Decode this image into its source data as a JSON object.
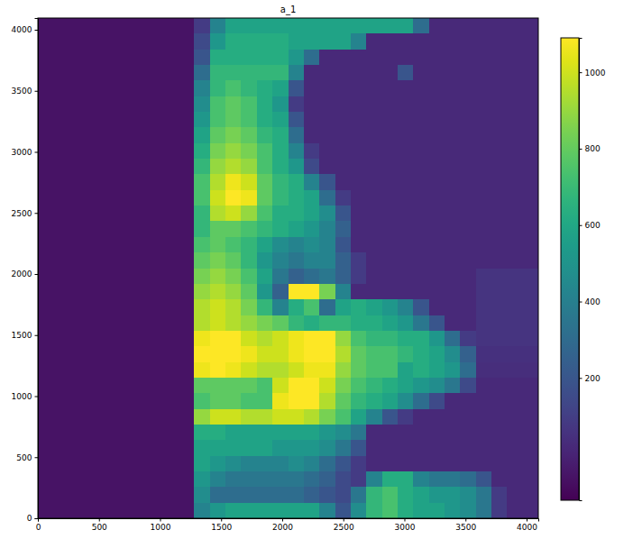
{
  "chart_data": {
    "type": "heatmap",
    "title": "a_1",
    "color": "viridis",
    "xlim": [
      0,
      4096
    ],
    "ylim": [
      0,
      4096
    ],
    "xticks": [
      0,
      500,
      1000,
      1500,
      2000,
      2500,
      3000,
      3500,
      4000
    ],
    "yticks": [
      0,
      500,
      1000,
      1500,
      2000,
      2500,
      3000,
      3500,
      4000
    ],
    "x_edges": [
      0,
      128,
      256,
      384,
      512,
      640,
      768,
      896,
      1024,
      1152,
      1280,
      1408,
      1536,
      1664,
      1792,
      1920,
      2048,
      2176,
      2304,
      2432,
      2560,
      2688,
      2816,
      2944,
      3072,
      3200,
      3328,
      3456,
      3584,
      3712,
      3840,
      3968,
      4096
    ],
    "y_edges": [
      4096,
      3968,
      3840,
      3712,
      3584,
      3456,
      3328,
      3200,
      3072,
      2944,
      2816,
      2688,
      2560,
      2432,
      2304,
      2176,
      2048,
      1920,
      1792,
      1664,
      1536,
      1408,
      1280,
      1152,
      1024,
      896,
      768,
      640,
      512,
      384,
      256,
      128,
      0
    ],
    "z": [
      [
        -60,
        -60,
        -60,
        -60,
        -60,
        -60,
        -60,
        -60,
        -60,
        -60,
        90,
        420,
        580,
        580,
        580,
        580,
        580,
        580,
        580,
        580,
        580,
        580,
        580,
        580,
        310,
        20,
        20,
        20,
        20,
        20,
        20,
        20
      ],
      [
        -60,
        -60,
        -60,
        -60,
        -60,
        -60,
        -60,
        -60,
        -60,
        -60,
        150,
        520,
        630,
        630,
        630,
        630,
        580,
        580,
        580,
        580,
        420,
        20,
        20,
        20,
        20,
        20,
        20,
        20,
        20,
        20,
        20,
        20
      ],
      [
        -60,
        -60,
        -60,
        -60,
        -60,
        -60,
        -60,
        -60,
        -60,
        -60,
        200,
        630,
        630,
        630,
        630,
        630,
        520,
        310,
        20,
        20,
        20,
        20,
        20,
        20,
        20,
        20,
        20,
        20,
        20,
        20,
        20,
        20
      ],
      [
        -60,
        -60,
        -60,
        -60,
        -60,
        -60,
        -60,
        -60,
        -60,
        -60,
        310,
        680,
        680,
        680,
        680,
        680,
        420,
        20,
        20,
        20,
        20,
        20,
        20,
        200,
        20,
        20,
        20,
        20,
        20,
        20,
        20,
        20
      ],
      [
        -60,
        -60,
        -60,
        -60,
        -60,
        -60,
        -60,
        -60,
        -60,
        -60,
        420,
        680,
        740,
        680,
        630,
        580,
        200,
        20,
        20,
        20,
        20,
        20,
        20,
        20,
        20,
        20,
        20,
        20,
        20,
        20,
        20,
        20
      ],
      [
        -60,
        -60,
        -60,
        -60,
        -60,
        -60,
        -60,
        -60,
        -60,
        -60,
        470,
        740,
        790,
        740,
        630,
        520,
        90,
        20,
        20,
        20,
        20,
        20,
        20,
        20,
        20,
        20,
        20,
        20,
        20,
        20,
        20,
        20
      ],
      [
        -60,
        -60,
        -60,
        -60,
        -60,
        -60,
        -60,
        -60,
        -60,
        -60,
        520,
        740,
        790,
        740,
        630,
        580,
        200,
        20,
        20,
        20,
        20,
        20,
        20,
        20,
        20,
        20,
        20,
        20,
        20,
        20,
        20,
        20
      ],
      [
        -60,
        -60,
        -60,
        -60,
        -60,
        -60,
        -60,
        -60,
        -60,
        -60,
        580,
        790,
        840,
        790,
        680,
        630,
        310,
        20,
        20,
        20,
        20,
        20,
        20,
        20,
        20,
        20,
        20,
        20,
        20,
        20,
        20,
        20
      ],
      [
        -60,
        -60,
        -60,
        -60,
        -60,
        -60,
        -60,
        -60,
        -60,
        -60,
        630,
        840,
        900,
        840,
        740,
        630,
        420,
        90,
        20,
        20,
        20,
        20,
        20,
        20,
        20,
        20,
        20,
        20,
        20,
        20,
        20,
        20
      ],
      [
        -60,
        -60,
        -60,
        -60,
        -60,
        -60,
        -60,
        -60,
        -60,
        -60,
        680,
        900,
        950,
        900,
        740,
        630,
        520,
        150,
        20,
        20,
        20,
        20,
        20,
        20,
        20,
        20,
        20,
        20,
        20,
        20,
        20,
        20
      ],
      [
        -60,
        -60,
        -60,
        -60,
        -60,
        -60,
        -60,
        -60,
        -60,
        -60,
        740,
        950,
        1060,
        1000,
        790,
        680,
        630,
        420,
        200,
        20,
        20,
        20,
        20,
        20,
        20,
        20,
        20,
        20,
        20,
        20,
        20,
        20
      ],
      [
        -60,
        -60,
        -60,
        -60,
        -60,
        -60,
        -60,
        -60,
        -60,
        -60,
        740,
        1000,
        1090,
        1060,
        790,
        680,
        630,
        580,
        310,
        90,
        20,
        20,
        20,
        20,
        20,
        20,
        20,
        20,
        20,
        20,
        20,
        20
      ],
      [
        -60,
        -60,
        -60,
        -60,
        -60,
        -60,
        -60,
        -60,
        -60,
        -60,
        680,
        950,
        1000,
        900,
        740,
        630,
        630,
        580,
        470,
        200,
        20,
        20,
        20,
        20,
        20,
        20,
        20,
        20,
        20,
        20,
        20,
        20
      ],
      [
        -60,
        -60,
        -60,
        -60,
        -60,
        -60,
        -60,
        -60,
        -60,
        -60,
        680,
        790,
        790,
        740,
        680,
        630,
        580,
        520,
        420,
        250,
        20,
        20,
        20,
        20,
        20,
        20,
        20,
        20,
        20,
        20,
        20,
        20
      ],
      [
        -60,
        -60,
        -60,
        -60,
        -60,
        -60,
        -60,
        -60,
        -60,
        -60,
        740,
        790,
        740,
        680,
        580,
        470,
        420,
        470,
        420,
        200,
        20,
        20,
        20,
        20,
        20,
        20,
        20,
        20,
        20,
        20,
        20,
        20
      ],
      [
        -60,
        -60,
        -60,
        -60,
        -60,
        -60,
        -60,
        -60,
        -60,
        -60,
        790,
        840,
        790,
        680,
        520,
        420,
        360,
        420,
        420,
        250,
        90,
        20,
        20,
        20,
        20,
        20,
        20,
        20,
        20,
        20,
        20,
        20
      ],
      [
        -60,
        -60,
        -60,
        -60,
        -60,
        -60,
        -60,
        -60,
        -60,
        -60,
        840,
        900,
        840,
        740,
        580,
        360,
        250,
        310,
        360,
        250,
        90,
        20,
        20,
        20,
        20,
        20,
        20,
        20,
        60,
        60,
        60,
        60
      ],
      [
        -60,
        -60,
        -60,
        -60,
        -60,
        -60,
        -60,
        -60,
        -60,
        -60,
        900,
        950,
        900,
        790,
        520,
        250,
        1090,
        1090,
        840,
        420,
        20,
        20,
        20,
        20,
        20,
        20,
        20,
        20,
        60,
        60,
        60,
        60
      ],
      [
        -60,
        -60,
        -60,
        -60,
        -60,
        -60,
        -60,
        -60,
        -60,
        -60,
        950,
        1000,
        950,
        840,
        680,
        420,
        630,
        740,
        310,
        580,
        630,
        580,
        520,
        420,
        200,
        20,
        20,
        20,
        60,
        60,
        60,
        60
      ],
      [
        -60,
        -60,
        -60,
        -60,
        -60,
        -60,
        -60,
        -60,
        -60,
        -60,
        950,
        1000,
        950,
        900,
        840,
        790,
        680,
        630,
        680,
        680,
        630,
        630,
        580,
        520,
        360,
        200,
        20,
        20,
        60,
        60,
        60,
        60
      ],
      [
        -60,
        -60,
        -60,
        -60,
        -60,
        -60,
        -60,
        -60,
        -60,
        -60,
        1060,
        1090,
        1090,
        1000,
        950,
        1000,
        1060,
        1090,
        1090,
        900,
        740,
        680,
        680,
        630,
        630,
        520,
        310,
        90,
        60,
        60,
        60,
        60
      ],
      [
        -60,
        -60,
        -60,
        -60,
        -60,
        -60,
        -60,
        -60,
        -60,
        -60,
        1090,
        1090,
        1090,
        1060,
        1000,
        1000,
        1060,
        1090,
        1090,
        950,
        790,
        740,
        740,
        680,
        630,
        580,
        470,
        250,
        50,
        50,
        50,
        50
      ],
      [
        -60,
        -60,
        -60,
        -60,
        -60,
        -60,
        -60,
        -60,
        -60,
        -60,
        1060,
        1090,
        1060,
        1000,
        950,
        950,
        1000,
        1060,
        1060,
        900,
        790,
        740,
        740,
        580,
        630,
        580,
        520,
        310,
        40,
        40,
        40,
        40
      ],
      [
        -60,
        -60,
        -60,
        -60,
        -60,
        -60,
        -60,
        -60,
        -60,
        -60,
        790,
        790,
        790,
        790,
        740,
        1000,
        1090,
        1090,
        1000,
        840,
        740,
        680,
        630,
        580,
        520,
        470,
        360,
        150,
        20,
        20,
        20,
        20
      ],
      [
        -60,
        -60,
        -60,
        -60,
        -60,
        -60,
        -60,
        -60,
        -60,
        -60,
        740,
        790,
        790,
        740,
        740,
        1060,
        1090,
        1090,
        950,
        790,
        680,
        630,
        580,
        470,
        310,
        150,
        20,
        20,
        20,
        20,
        20,
        20
      ],
      [
        -60,
        -60,
        -60,
        -60,
        -60,
        -60,
        -60,
        -60,
        -60,
        -60,
        900,
        1000,
        1000,
        950,
        950,
        1000,
        1000,
        950,
        840,
        740,
        580,
        420,
        200,
        90,
        20,
        20,
        20,
        20,
        20,
        20,
        20,
        20
      ],
      [
        -60,
        -60,
        -60,
        -60,
        -60,
        -60,
        -60,
        -60,
        -60,
        -60,
        630,
        630,
        580,
        580,
        580,
        580,
        580,
        580,
        520,
        470,
        360,
        20,
        20,
        20,
        20,
        20,
        20,
        20,
        20,
        20,
        20,
        20
      ],
      [
        -60,
        -60,
        -60,
        -60,
        -60,
        -60,
        -60,
        -60,
        -60,
        -60,
        580,
        580,
        580,
        580,
        580,
        520,
        520,
        520,
        470,
        360,
        200,
        20,
        20,
        20,
        20,
        20,
        20,
        20,
        20,
        20,
        20,
        20
      ],
      [
        -60,
        -60,
        -60,
        -60,
        -60,
        -60,
        -60,
        -60,
        -60,
        -60,
        580,
        520,
        470,
        420,
        420,
        420,
        470,
        420,
        310,
        200,
        90,
        20,
        20,
        20,
        20,
        20,
        20,
        20,
        20,
        20,
        20,
        20
      ],
      [
        -60,
        -60,
        -60,
        -60,
        -60,
        -60,
        -60,
        -60,
        -60,
        -60,
        520,
        420,
        360,
        360,
        360,
        360,
        360,
        310,
        250,
        150,
        90,
        420,
        630,
        630,
        420,
        360,
        360,
        310,
        200,
        20,
        20,
        20
      ],
      [
        -60,
        -60,
        -60,
        -60,
        -60,
        -60,
        -60,
        -60,
        -60,
        -60,
        470,
        310,
        310,
        310,
        310,
        310,
        310,
        250,
        200,
        150,
        360,
        680,
        740,
        630,
        580,
        520,
        520,
        470,
        360,
        90,
        20,
        20
      ],
      [
        -60,
        -60,
        -60,
        -60,
        -60,
        -60,
        -60,
        -60,
        -60,
        -60,
        420,
        520,
        580,
        580,
        580,
        580,
        580,
        580,
        420,
        200,
        470,
        680,
        740,
        630,
        580,
        580,
        520,
        470,
        360,
        90,
        20,
        20
      ]
    ],
    "colorbar": {
      "range": [
        -120,
        1090
      ],
      "ticks": [
        200,
        400,
        600,
        800,
        1000
      ]
    }
  }
}
